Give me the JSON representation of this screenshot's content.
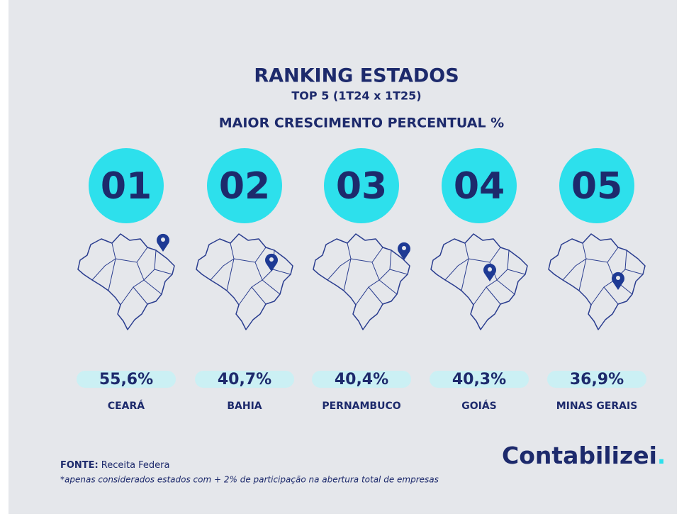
{
  "header": {
    "title": "RANKING ESTADOS",
    "subtitle": "TOP 5 (1T24 x 1T25)",
    "heading": "MAIOR CRESCIMENTO PERCENTUAL %"
  },
  "items": [
    {
      "rank": "01",
      "value": "55,6%",
      "state": "CEARÁ"
    },
    {
      "rank": "02",
      "value": "40,7%",
      "state": "BAHIA"
    },
    {
      "rank": "03",
      "value": "40,4%",
      "state": "PERNAMBUCO"
    },
    {
      "rank": "04",
      "value": "40,3%",
      "state": "GOIÁS"
    },
    {
      "rank": "05",
      "value": "36,9%",
      "state": "MINAS GERAIS"
    }
  ],
  "footer": {
    "source_label": "FONTE:",
    "source": "Receita Federa",
    "note": "*apenas considerados estados com + 2% de participação na abertura total de empresas"
  },
  "logo": {
    "text": "Contabilizei",
    "dot": "."
  }
}
